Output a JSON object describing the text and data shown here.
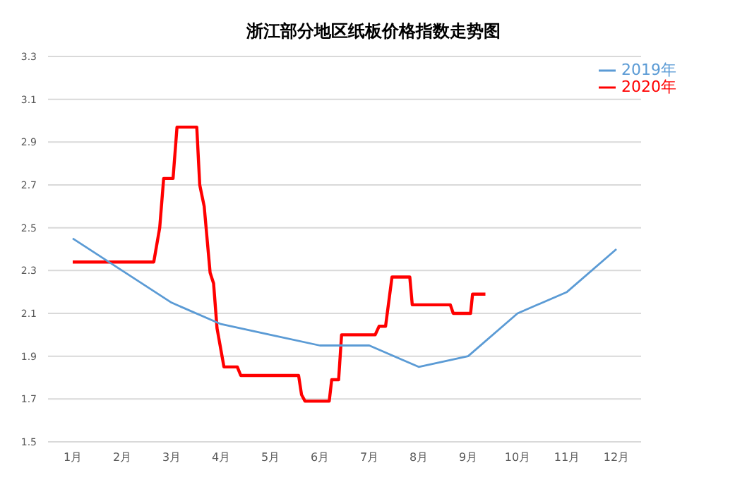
{
  "chart_data": {
    "type": "line",
    "title": "浙江部分地区纸板价格指数走势图",
    "xlim": [
      0.5,
      12.5
    ],
    "xticks": [
      {
        "value": 1,
        "label": "1月"
      },
      {
        "value": 2,
        "label": "2月"
      },
      {
        "value": 3,
        "label": "3月"
      },
      {
        "value": 4,
        "label": "4月"
      },
      {
        "value": 5,
        "label": "5月"
      },
      {
        "value": 6,
        "label": "6月"
      },
      {
        "value": 7,
        "label": "7月"
      },
      {
        "value": 8,
        "label": "8月"
      },
      {
        "value": 9,
        "label": "9月"
      },
      {
        "value": 10,
        "label": "10月"
      },
      {
        "value": 11,
        "label": "11月"
      },
      {
        "value": 12,
        "label": "12月"
      }
    ],
    "ylim": [
      1.5,
      3.3
    ],
    "yticks": [
      1.5,
      1.7,
      1.9,
      2.1,
      2.3,
      2.5,
      2.7,
      2.9,
      3.1,
      3.3
    ],
    "grid": "y",
    "legend": "top right",
    "marker": "none",
    "line_style": "solid",
    "series": [
      {
        "name": "2020年",
        "color": "#ff0000",
        "x": [
          1.0,
          2.64,
          2.76,
          2.84,
          3.03,
          3.11,
          3.51,
          3.57,
          3.66,
          3.78,
          3.85,
          3.92,
          4.06,
          4.33,
          4.4,
          5.57,
          5.63,
          5.7,
          6.19,
          6.24,
          6.38,
          6.44,
          7.12,
          7.2,
          7.33,
          7.46,
          7.82,
          7.87,
          8.64,
          8.7,
          9.05,
          9.09,
          9.35
        ],
        "values": [
          2.34,
          2.34,
          2.5,
          2.73,
          2.73,
          2.97,
          2.97,
          2.7,
          2.6,
          2.29,
          2.24,
          2.03,
          1.85,
          1.85,
          1.81,
          1.81,
          1.72,
          1.69,
          1.69,
          1.79,
          1.79,
          2.0,
          2.0,
          2.04,
          2.04,
          2.27,
          2.27,
          2.14,
          2.14,
          2.1,
          2.1,
          2.19,
          2.19
        ]
      },
      {
        "name": "2019年",
        "color": "#5b9bd5",
        "x": [
          1,
          2,
          3,
          4,
          5,
          6,
          7,
          8,
          9,
          10,
          11,
          12
        ],
        "values": [
          2.45,
          2.3,
          2.15,
          2.05,
          2.0,
          1.95,
          1.95,
          1.85,
          1.9,
          2.1,
          2.2,
          2.4
        ]
      }
    ]
  }
}
